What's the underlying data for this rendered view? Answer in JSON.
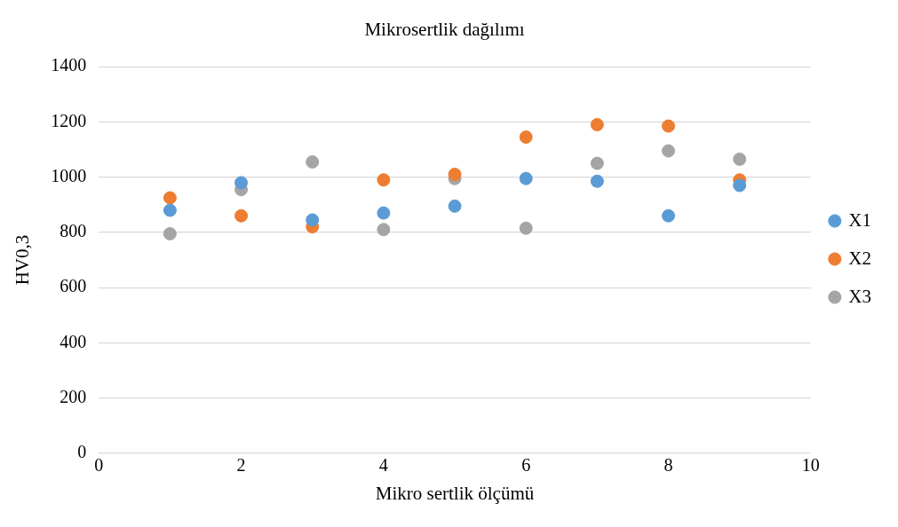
{
  "chart_data": {
    "type": "scatter",
    "title": "Mikrosertlik dağılımı",
    "xlabel": "Mikro sertlik ölçümü",
    "ylabel": "HV0,3",
    "x": [
      1,
      2,
      3,
      4,
      5,
      6,
      7,
      8,
      9
    ],
    "series": [
      {
        "name": "X1",
        "color": "#5b9bd5",
        "values": [
          880,
          980,
          845,
          870,
          895,
          995,
          985,
          860,
          970
        ]
      },
      {
        "name": "X2",
        "color": "#ed7d31",
        "values": [
          925,
          860,
          820,
          990,
          1010,
          1145,
          1190,
          1185,
          990
        ]
      },
      {
        "name": "X3",
        "color": "#a5a5a5",
        "values": [
          795,
          955,
          1055,
          810,
          995,
          815,
          1050,
          1095,
          1065
        ]
      }
    ],
    "xlim": [
      0,
      10
    ],
    "xticks": [
      0,
      2,
      4,
      6,
      8,
      10
    ],
    "ylim": [
      0,
      1400
    ],
    "yticks": [
      0,
      200,
      400,
      600,
      800,
      1000,
      1200,
      1400
    ],
    "grid": "y",
    "legend": "right",
    "marker": "circle"
  }
}
